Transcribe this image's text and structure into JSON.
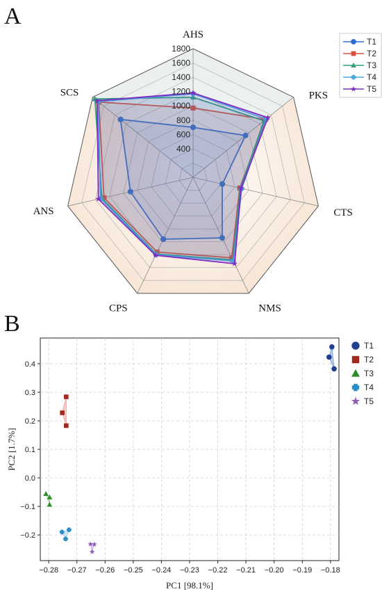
{
  "figure": {
    "panel_a_letter": "A",
    "panel_b_letter": "B"
  },
  "chart_data": [
    {
      "type": "radar",
      "axes": [
        "AHS",
        "PKS",
        "CTS",
        "NMS",
        "CPS",
        "ANS",
        "SCS"
      ],
      "rlim": [
        0,
        1800
      ],
      "ticks": [
        "400",
        "600",
        "800",
        "1000",
        "1200",
        "1400",
        "1600",
        "1800"
      ],
      "tick_values": [
        400,
        600,
        800,
        1000,
        1200,
        1400,
        1600,
        1800
      ],
      "grid": true,
      "legend_position": "top-right",
      "series": [
        {
          "name": "T1",
          "color": "#2e6fd1",
          "marker": "circle",
          "values": [
            700,
            940,
            420,
            940,
            960,
            900,
            1300
          ]
        },
        {
          "name": "T2",
          "color": "#d9503f",
          "marker": "square",
          "values": [
            970,
            1300,
            670,
            1250,
            1160,
            1280,
            1690
          ]
        },
        {
          "name": "T3",
          "color": "#2f9e7a",
          "marker": "triangle",
          "values": [
            1120,
            1270,
            680,
            1280,
            1190,
            1310,
            1760
          ]
        },
        {
          "name": "T4",
          "color": "#4aa8dc",
          "marker": "plus",
          "values": [
            1170,
            1310,
            700,
            1300,
            1200,
            1330,
            1700
          ]
        },
        {
          "name": "T5",
          "color": "#7d2bc2",
          "marker": "star",
          "values": [
            1180,
            1340,
            690,
            1340,
            1210,
            1360,
            1720
          ]
        }
      ]
    },
    {
      "type": "scatter",
      "xlabel": "PC1 [98.1%]",
      "ylabel": "PC2 [1.7%]",
      "xlim": [
        -0.283,
        -0.177
      ],
      "ylim": [
        -0.29,
        0.49
      ],
      "xticks": [
        -0.28,
        -0.27,
        -0.26,
        -0.25,
        -0.24,
        -0.23,
        -0.22,
        -0.21,
        -0.2,
        -0.19,
        -0.18
      ],
      "xtick_labels": [
        "−0.28",
        "−0.27",
        "−0.26",
        "−0.25",
        "−0.24",
        "−0.23",
        "−0.22",
        "−0.21",
        "−0.20",
        "−0.19",
        "−0.18"
      ],
      "yticks": [
        -0.2,
        -0.1,
        0.0,
        0.1,
        0.2,
        0.3,
        0.4
      ],
      "ytick_labels": [
        "−0.2",
        "−0.1",
        "0.0",
        "0.1",
        "0.2",
        "0.3",
        "0.4"
      ],
      "grid": true,
      "legend_position": "right, outside",
      "series": [
        {
          "name": "T1",
          "color": "#1f3f8f",
          "fill": "#7fa6db",
          "marker": "circle",
          "points": [
            [
              -0.1805,
              0.423
            ],
            [
              -0.1795,
              0.459
            ],
            [
              -0.1787,
              0.382
            ]
          ]
        },
        {
          "name": "T2",
          "color": "#a0281c",
          "fill": "#efa5a0",
          "marker": "square",
          "points": [
            [
              -0.2752,
              0.228
            ],
            [
              -0.2738,
              0.284
            ],
            [
              -0.2738,
              0.183
            ]
          ]
        },
        {
          "name": "T3",
          "color": "#2a8f2a",
          "fill": "#a6d89f",
          "marker": "triangle",
          "points": [
            [
              -0.281,
              -0.056
            ],
            [
              -0.2797,
              -0.068
            ],
            [
              -0.2797,
              -0.094
            ]
          ]
        },
        {
          "name": "T4",
          "color": "#2a8fc4",
          "fill": "#a5d3ee",
          "marker": "plus",
          "points": [
            [
              -0.2753,
              -0.19
            ],
            [
              -0.2728,
              -0.182
            ],
            [
              -0.274,
              -0.214
            ]
          ]
        },
        {
          "name": "T5",
          "color": "#8e5bb5",
          "fill": "#c8aee0",
          "marker": "star",
          "points": [
            [
              -0.2652,
              -0.232
            ],
            [
              -0.2638,
              -0.233
            ],
            [
              -0.2646,
              -0.259
            ]
          ]
        }
      ]
    }
  ]
}
